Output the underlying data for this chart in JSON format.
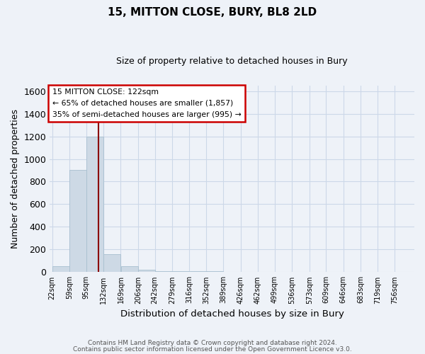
{
  "title1": "15, MITTON CLOSE, BURY, BL8 2LD",
  "title2": "Size of property relative to detached houses in Bury",
  "xlabel": "Distribution of detached houses by size in Bury",
  "ylabel": "Number of detached properties",
  "bin_labels": [
    "22sqm",
    "59sqm",
    "95sqm",
    "132sqm",
    "169sqm",
    "206sqm",
    "242sqm",
    "279sqm",
    "316sqm",
    "352sqm",
    "389sqm",
    "426sqm",
    "462sqm",
    "499sqm",
    "536sqm",
    "573sqm",
    "609sqm",
    "646sqm",
    "683sqm",
    "719sqm",
    "756sqm"
  ],
  "bin_left_edges": [
    22,
    59,
    95,
    132,
    169,
    206,
    242,
    279,
    316,
    352,
    389,
    426,
    462,
    499,
    536,
    573,
    609,
    646,
    683,
    719,
    756
  ],
  "bar_heights": [
    50,
    900,
    1200,
    160,
    55,
    20,
    12,
    12,
    12,
    12,
    0,
    0,
    0,
    0,
    0,
    0,
    0,
    0,
    0,
    0,
    0
  ],
  "bar_color": "#cdd9e5",
  "bar_edge_color": "#a8bfd0",
  "vline_x": 122,
  "vline_color": "#8b0000",
  "ylim": [
    0,
    1650
  ],
  "yticks": [
    0,
    200,
    400,
    600,
    800,
    1000,
    1200,
    1400,
    1600
  ],
  "annotation_title": "15 MITTON CLOSE: 122sqm",
  "annotation_line1": "← 65% of detached houses are smaller (1,857)",
  "annotation_line2": "35% of semi-detached houses are larger (995) →",
  "annotation_box_facecolor": "#ffffff",
  "annotation_box_edgecolor": "#cc0000",
  "grid_color": "#ccd8e8",
  "bg_color": "#eef2f8",
  "footnote1": "Contains HM Land Registry data © Crown copyright and database right 2024.",
  "footnote2": "Contains public sector information licensed under the Open Government Licence v3.0."
}
